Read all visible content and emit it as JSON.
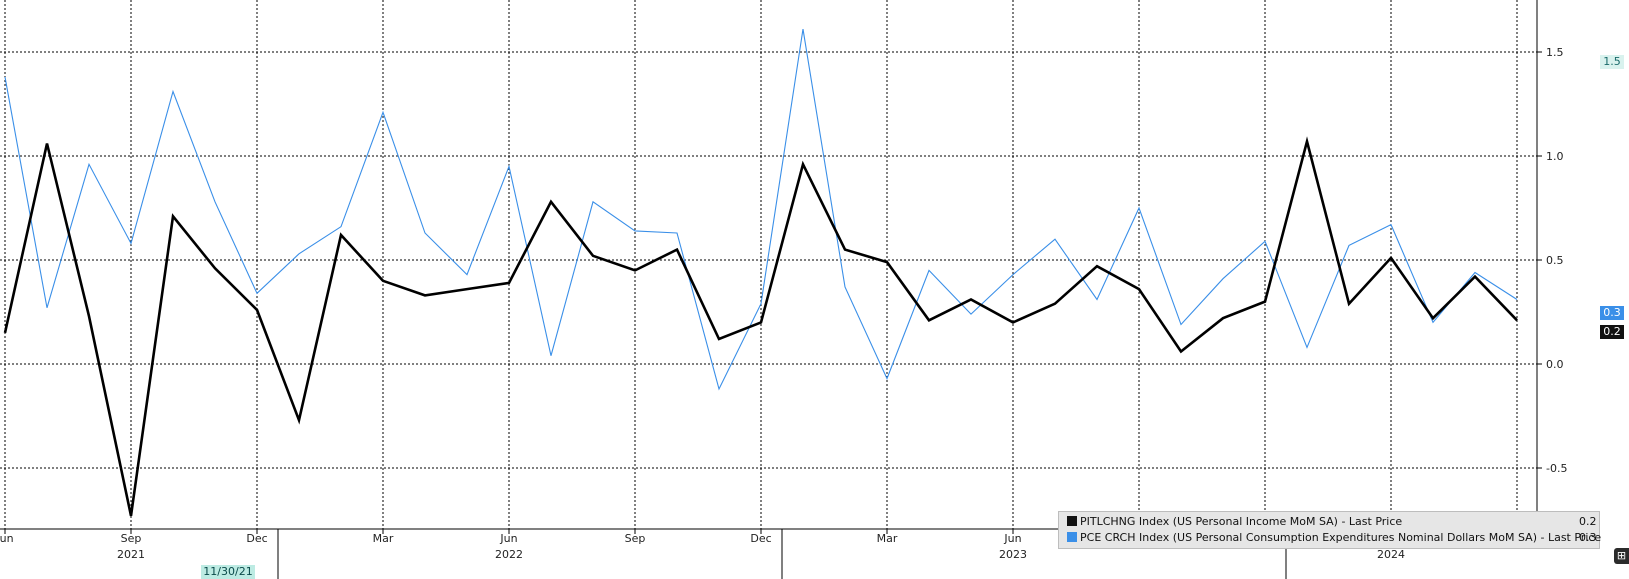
{
  "chart_data": {
    "type": "line",
    "x": [
      "2021-06",
      "2021-07",
      "2021-08",
      "2021-09",
      "2021-10",
      "2021-11",
      "2021-12",
      "2022-01",
      "2022-02",
      "2022-03",
      "2022-04",
      "2022-05",
      "2022-06",
      "2022-07",
      "2022-08",
      "2022-09",
      "2022-10",
      "2022-11",
      "2022-12",
      "2023-01",
      "2023-02",
      "2023-03",
      "2023-04",
      "2023-05",
      "2023-06",
      "2023-07",
      "2023-08",
      "2023-09",
      "2023-10",
      "2023-11",
      "2023-12",
      "2024-01",
      "2024-02",
      "2024-03",
      "2024-04",
      "2024-05",
      "2024-06"
    ],
    "x_tick_months": [
      "Jun",
      "Sep",
      "Dec",
      "Mar",
      "Jun",
      "Sep",
      "Dec",
      "Mar",
      "Jun",
      "Sep",
      "Dec",
      "Mar",
      "Jun"
    ],
    "x_tick_years": [
      "2021",
      "2022",
      "2023",
      "2024"
    ],
    "y_ticks": [
      "1.5",
      "1.0",
      "0.5",
      "0.0",
      "-0.5"
    ],
    "ylim": [
      -0.78,
      1.65
    ],
    "series": [
      {
        "name": "PITLCHNG Index (US Personal Income MoM SA) - Last Price",
        "color": "#000000",
        "last": "0.2",
        "values": [
          0.15,
          1.06,
          0.23,
          -0.73,
          0.71,
          0.46,
          0.26,
          -0.27,
          0.62,
          0.4,
          0.33,
          0.36,
          0.39,
          0.78,
          0.52,
          0.45,
          0.55,
          0.12,
          0.2,
          0.96,
          0.55,
          0.49,
          0.21,
          0.31,
          0.2,
          0.29,
          0.47,
          0.36,
          0.06,
          0.22,
          0.3,
          1.07,
          0.29,
          0.51,
          0.22,
          0.42,
          0.21
        ]
      },
      {
        "name": "PCE CRCH Index (US Personal Consumption Expenditures Nominal Dollars MoM SA) - Last Price",
        "color": "#3a8fe8",
        "last": "0.3",
        "values": [
          1.38,
          0.27,
          0.96,
          0.58,
          1.31,
          0.78,
          0.34,
          0.53,
          0.66,
          1.21,
          0.63,
          0.43,
          0.95,
          0.04,
          0.78,
          0.64,
          0.63,
          -0.12,
          0.29,
          1.61,
          0.37,
          -0.07,
          0.45,
          0.24,
          0.43,
          0.6,
          0.31,
          0.75,
          0.19,
          0.41,
          0.59,
          0.08,
          0.57,
          0.67,
          0.2,
          0.44,
          0.31
        ]
      }
    ],
    "highlight_date": "11/30/21",
    "last_tick_label": "1.5"
  }
}
